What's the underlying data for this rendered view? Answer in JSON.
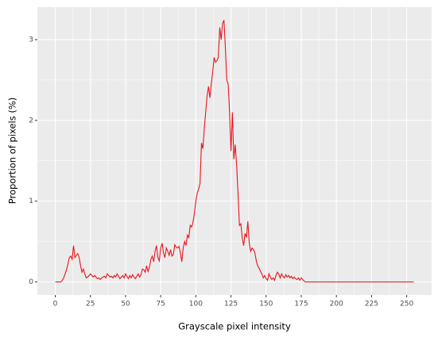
{
  "chart_data": {
    "type": "line",
    "x_label": "Grayscale pixel intensity",
    "y_label": "Proportion of pixels (%)",
    "x": [
      0,
      1,
      2,
      3,
      4,
      5,
      6,
      7,
      8,
      9,
      10,
      11,
      12,
      13,
      14,
      15,
      16,
      17,
      18,
      19,
      20,
      21,
      22,
      23,
      24,
      25,
      26,
      27,
      28,
      29,
      30,
      31,
      32,
      33,
      34,
      35,
      36,
      37,
      38,
      39,
      40,
      41,
      42,
      43,
      44,
      45,
      46,
      47,
      48,
      49,
      50,
      51,
      52,
      53,
      54,
      55,
      56,
      57,
      58,
      59,
      60,
      61,
      62,
      63,
      64,
      65,
      66,
      67,
      68,
      69,
      70,
      71,
      72,
      73,
      74,
      75,
      76,
      77,
      78,
      79,
      80,
      81,
      82,
      83,
      84,
      85,
      86,
      87,
      88,
      89,
      90,
      91,
      92,
      93,
      94,
      95,
      96,
      97,
      98,
      99,
      100,
      101,
      102,
      103,
      104,
      105,
      106,
      107,
      108,
      109,
      110,
      111,
      112,
      113,
      114,
      115,
      116,
      117,
      118,
      119,
      120,
      121,
      122,
      123,
      124,
      125,
      126,
      127,
      128,
      129,
      130,
      131,
      132,
      133,
      134,
      135,
      136,
      137,
      138,
      139,
      140,
      141,
      142,
      143,
      144,
      145,
      146,
      147,
      148,
      149,
      150,
      151,
      152,
      153,
      154,
      155,
      156,
      157,
      158,
      159,
      160,
      161,
      162,
      163,
      164,
      165,
      166,
      167,
      168,
      169,
      170,
      171,
      172,
      173,
      174,
      175,
      176,
      177,
      178,
      179,
      180,
      181,
      182,
      183,
      184,
      185,
      186,
      187,
      188,
      189,
      190,
      191,
      192,
      193,
      194,
      195,
      196,
      197,
      198,
      199,
      200,
      201,
      202,
      203,
      204,
      205,
      206,
      207,
      208,
      209,
      210,
      211,
      212,
      213,
      214,
      215,
      216,
      217,
      218,
      219,
      220,
      221,
      222,
      223,
      224,
      225,
      226,
      227,
      228,
      229,
      230,
      231,
      232,
      233,
      234,
      235,
      236,
      237,
      238,
      239,
      240,
      241,
      242,
      243,
      244,
      245,
      246,
      247,
      248,
      249,
      250,
      251,
      252,
      253,
      254,
      255
    ],
    "series": [
      {
        "color": "#e8141c",
        "values": [
          0,
          0,
          0,
          0,
          0,
          0.02,
          0.05,
          0.1,
          0.15,
          0.22,
          0.3,
          0.32,
          0.28,
          0.45,
          0.3,
          0.33,
          0.35,
          0.3,
          0.2,
          0.12,
          0.16,
          0.1,
          0.05,
          0.06,
          0.08,
          0.1,
          0.08,
          0.06,
          0.08,
          0.06,
          0.04,
          0.05,
          0.03,
          0.05,
          0.06,
          0.07,
          0.05,
          0.1,
          0.08,
          0.06,
          0.07,
          0.05,
          0.08,
          0.06,
          0.1,
          0.07,
          0.04,
          0.06,
          0.08,
          0.05,
          0.1,
          0.07,
          0.04,
          0.08,
          0.05,
          0.09,
          0.06,
          0.04,
          0.07,
          0.1,
          0.06,
          0.09,
          0.16,
          0.15,
          0.12,
          0.2,
          0.13,
          0.18,
          0.28,
          0.32,
          0.25,
          0.38,
          0.45,
          0.3,
          0.26,
          0.42,
          0.48,
          0.36,
          0.3,
          0.42,
          0.38,
          0.33,
          0.4,
          0.32,
          0.34,
          0.46,
          0.43,
          0.42,
          0.44,
          0.36,
          0.25,
          0.42,
          0.5,
          0.45,
          0.58,
          0.55,
          0.7,
          0.68,
          0.74,
          0.85,
          1.0,
          1.1,
          1.15,
          1.22,
          1.72,
          1.65,
          1.9,
          2.1,
          2.3,
          2.42,
          2.28,
          2.45,
          2.6,
          2.78,
          2.72,
          2.74,
          2.78,
          3.15,
          3.0,
          3.2,
          3.24,
          2.9,
          2.5,
          2.45,
          2.1,
          1.62,
          2.1,
          1.52,
          1.7,
          1.45,
          1.1,
          0.7,
          0.72,
          0.55,
          0.45,
          0.6,
          0.55,
          0.75,
          0.48,
          0.38,
          0.42,
          0.4,
          0.36,
          0.26,
          0.2,
          0.17,
          0.13,
          0.1,
          0.05,
          0.08,
          0.04,
          0.02,
          0.1,
          0.06,
          0.03,
          0.05,
          0.02,
          0.08,
          0.12,
          0.1,
          0.05,
          0.1,
          0.07,
          0.05,
          0.09,
          0.06,
          0.08,
          0.05,
          0.07,
          0.04,
          0.06,
          0.04,
          0.03,
          0.05,
          0.02,
          0.05,
          0.03,
          0.01,
          0,
          0,
          0,
          0,
          0,
          0,
          0,
          0,
          0,
          0,
          0,
          0,
          0,
          0,
          0,
          0,
          0,
          0,
          0,
          0,
          0,
          0,
          0,
          0,
          0,
          0,
          0,
          0,
          0,
          0,
          0,
          0,
          0,
          0,
          0,
          0,
          0,
          0,
          0,
          0,
          0,
          0,
          0,
          0,
          0,
          0,
          0,
          0,
          0,
          0,
          0,
          0,
          0,
          0,
          0,
          0,
          0,
          0,
          0,
          0,
          0,
          0,
          0,
          0,
          0,
          0,
          0,
          0,
          0,
          0,
          0,
          0,
          0,
          0,
          0,
          0,
          0,
          0
        ]
      }
    ],
    "xlim": [
      -12.75,
      267.75
    ],
    "xticks": [
      0,
      25,
      50,
      75,
      100,
      125,
      150,
      175,
      200,
      225,
      250
    ],
    "ylim": [
      -0.162,
      3.402
    ],
    "yticks": [
      0,
      1,
      2,
      3
    ],
    "grid": true
  }
}
